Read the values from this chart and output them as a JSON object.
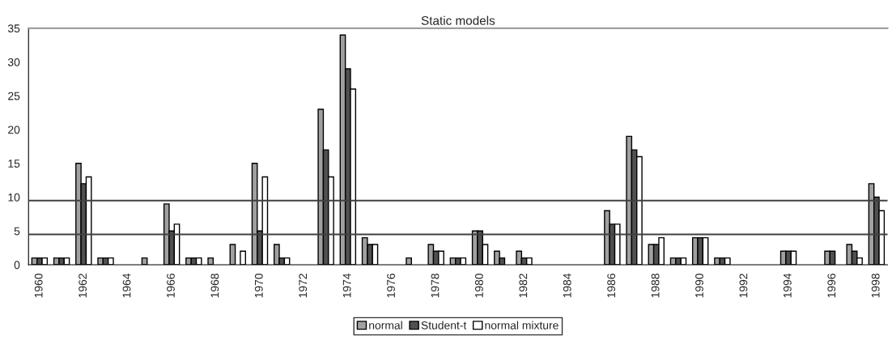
{
  "chart_data": {
    "type": "bar",
    "title": "Static models",
    "categories": [
      "1960",
      null,
      "1962",
      null,
      "1964",
      null,
      "1966",
      null,
      "1968",
      null,
      "1970",
      null,
      "1972",
      null,
      "1974",
      null,
      "1976",
      null,
      "1978",
      null,
      "1980",
      null,
      "1982",
      null,
      "1984",
      null,
      "1986",
      null,
      "1988",
      null,
      "1990",
      null,
      "1992",
      null,
      "1994",
      null,
      "1996",
      null,
      "1998"
    ],
    "series": [
      {
        "name": "normal",
        "color": "#a0a0a0",
        "values": [
          1,
          1,
          15,
          1,
          0,
          1,
          9,
          1,
          1,
          3,
          15,
          3,
          0,
          23,
          34,
          4,
          0,
          1,
          3,
          1,
          5,
          2,
          2,
          0,
          0,
          0,
          8,
          19,
          3,
          1,
          4,
          1,
          0,
          0,
          2,
          0,
          2,
          3,
          12
        ]
      },
      {
        "name": "Student-t",
        "color": "#505050",
        "values": [
          1,
          1,
          12,
          1,
          0,
          0,
          5,
          1,
          0,
          0,
          5,
          1,
          0,
          17,
          29,
          3,
          0,
          0,
          2,
          1,
          5,
          1,
          1,
          0,
          0,
          0,
          6,
          17,
          3,
          1,
          4,
          1,
          0,
          0,
          2,
          0,
          2,
          2,
          10
        ]
      },
      {
        "name": "normal mixture",
        "color": "#ffffff",
        "values": [
          1,
          1,
          13,
          1,
          0,
          0,
          6,
          1,
          0,
          2,
          13,
          1,
          0,
          13,
          26,
          3,
          0,
          0,
          2,
          1,
          3,
          0,
          1,
          0,
          0,
          0,
          6,
          16,
          4,
          1,
          4,
          1,
          0,
          0,
          2,
          0,
          0,
          1,
          8
        ]
      }
    ],
    "ylim": [
      0,
      35
    ],
    "yticks": [
      0,
      5,
      10,
      15,
      20,
      25,
      30,
      35
    ],
    "grid": false,
    "legend": "bottom",
    "ref_lines": [
      {
        "axis": "y",
        "value": 9.5,
        "color": "#404040"
      },
      {
        "axis": "y",
        "value": 4.5,
        "color": "#404040"
      }
    ]
  }
}
